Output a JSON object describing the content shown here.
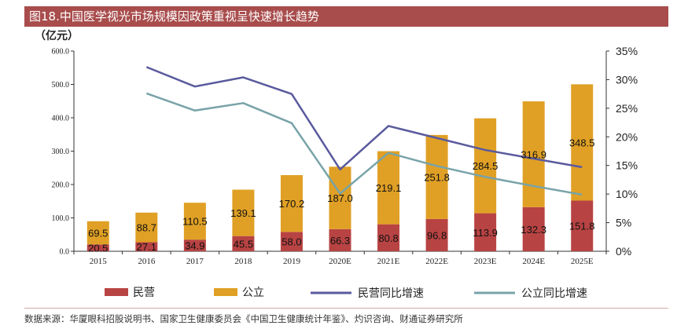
{
  "header": {
    "title": "图18.中国医学视光市场规模因政策重视呈快速增长趋势",
    "unit": "（亿元）"
  },
  "footer": {
    "source": "数据来源：华厦眼科招股说明书、国家卫生健康委员会《中国卫生健康统计年鉴》、灼识咨询、财通证券研究所"
  },
  "colors": {
    "title_bg": "#a84c4c",
    "private": "#b84343",
    "public": "#e0a025",
    "private_growth": "#5a5a9e",
    "public_growth": "#78a3a8"
  },
  "chart_data": {
    "type": "bar",
    "stacked": true,
    "categories": [
      "2015",
      "2016",
      "2017",
      "2018",
      "2019",
      "2020E",
      "2021E",
      "2022E",
      "2023E",
      "2024E",
      "2025E"
    ],
    "series": [
      {
        "name": "民营",
        "axis": "left",
        "type": "bar",
        "values": [
          20.5,
          27.1,
          34.9,
          45.5,
          58.0,
          66.3,
          80.8,
          96.8,
          113.9,
          132.3,
          151.8
        ]
      },
      {
        "name": "公立",
        "axis": "left",
        "type": "bar",
        "values": [
          69.5,
          88.7,
          110.5,
          139.1,
          170.2,
          187.0,
          219.1,
          251.8,
          284.5,
          316.9,
          348.5
        ]
      },
      {
        "name": "民营同比增速",
        "axis": "right",
        "type": "line",
        "values": [
          null,
          32.2,
          28.8,
          30.4,
          27.5,
          14.3,
          21.9,
          19.8,
          17.7,
          16.2,
          14.7
        ]
      },
      {
        "name": "公立同比增速",
        "axis": "right",
        "type": "line",
        "values": [
          null,
          27.6,
          24.6,
          25.9,
          22.4,
          10.1,
          17.2,
          14.9,
          13.0,
          11.4,
          9.9
        ]
      }
    ],
    "y_left": {
      "min": 0,
      "max": 600,
      "ticks": [
        "0.0",
        "100.0",
        "200.0",
        "300.0",
        "400.0",
        "500.0",
        "600.0"
      ]
    },
    "y_right": {
      "min": 0,
      "max": 35,
      "ticks": [
        "0%",
        "5%",
        "10%",
        "15%",
        "20%",
        "25%",
        "30%",
        "35%"
      ]
    },
    "legend_position": "bottom",
    "grid": false
  }
}
